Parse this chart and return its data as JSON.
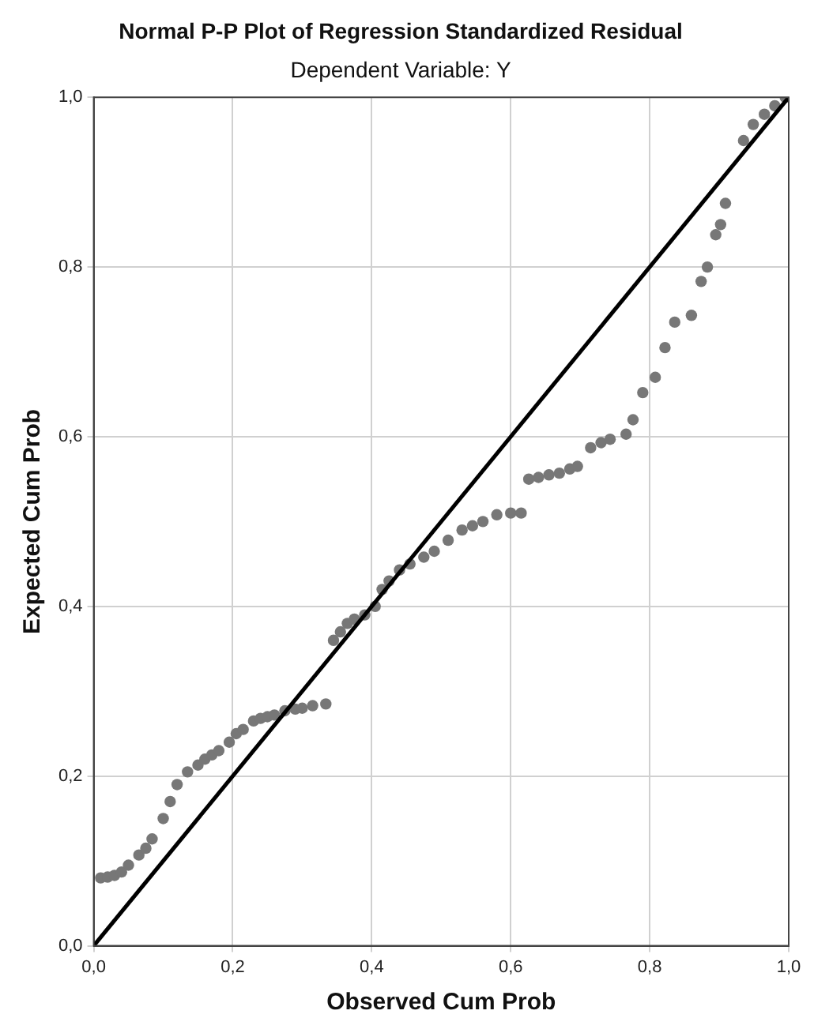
{
  "chart_data": {
    "type": "scatter",
    "title": "Normal P-P Plot of Regression Standardized Residual",
    "subtitle": "Dependent Variable: Y",
    "xlabel": "Observed Cum Prob",
    "ylabel": "Expected Cum Prob",
    "xlim": [
      0,
      1
    ],
    "ylim": [
      0,
      1
    ],
    "xticks": [
      {
        "value": 0,
        "label": "0,0"
      },
      {
        "value": 0.2,
        "label": "0,2"
      },
      {
        "value": 0.4,
        "label": "0,4"
      },
      {
        "value": 0.6,
        "label": "0,6"
      },
      {
        "value": 0.8,
        "label": "0,8"
      },
      {
        "value": 1,
        "label": "1,0"
      }
    ],
    "yticks": [
      {
        "value": 0,
        "label": "0,0"
      },
      {
        "value": 0.2,
        "label": "0,2"
      },
      {
        "value": 0.4,
        "label": "0,4"
      },
      {
        "value": 0.6,
        "label": "0,6"
      },
      {
        "value": 0.8,
        "label": "0,8"
      },
      {
        "value": 1,
        "label": "1,0"
      }
    ],
    "grid": true,
    "legend": false,
    "marker": "circle",
    "series": [
      {
        "color": "#777777",
        "x": [
          0.01,
          0.02,
          0.03,
          0.04,
          0.05,
          0.065,
          0.075,
          0.084,
          0.1,
          0.11,
          0.12,
          0.135,
          0.15,
          0.16,
          0.17,
          0.18,
          0.195,
          0.205,
          0.215,
          0.23,
          0.24,
          0.25,
          0.26,
          0.275,
          0.29,
          0.3,
          0.315,
          0.334,
          0.345,
          0.355,
          0.365,
          0.375,
          0.39,
          0.405,
          0.415,
          0.425,
          0.44,
          0.455,
          0.475,
          0.49,
          0.51,
          0.53,
          0.545,
          0.56,
          0.58,
          0.6,
          0.615,
          0.626,
          0.64,
          0.655,
          0.67,
          0.685,
          0.696,
          0.715,
          0.73,
          0.743,
          0.766,
          0.776,
          0.79,
          0.808,
          0.822,
          0.836,
          0.86,
          0.874,
          0.883,
          0.895,
          0.902,
          0.909,
          0.935,
          0.949,
          0.965,
          0.98,
          0.995
        ],
        "values": [
          0.08,
          0.081,
          0.083,
          0.087,
          0.095,
          0.107,
          0.115,
          0.126,
          0.15,
          0.17,
          0.19,
          0.205,
          0.213,
          0.22,
          0.225,
          0.23,
          0.24,
          0.25,
          0.255,
          0.265,
          0.268,
          0.27,
          0.272,
          0.277,
          0.279,
          0.28,
          0.283,
          0.285,
          0.36,
          0.37,
          0.38,
          0.385,
          0.39,
          0.4,
          0.42,
          0.43,
          0.443,
          0.45,
          0.458,
          0.465,
          0.478,
          0.49,
          0.495,
          0.5,
          0.508,
          0.51,
          0.51,
          0.55,
          0.552,
          0.555,
          0.557,
          0.562,
          0.565,
          0.587,
          0.593,
          0.597,
          0.603,
          0.62,
          0.652,
          0.67,
          0.705,
          0.735,
          0.743,
          0.783,
          0.8,
          0.838,
          0.85,
          0.875,
          0.949,
          0.968,
          0.98,
          0.99,
          1.0
        ]
      },
      {
        "type": "line",
        "color": "#000000",
        "x": [
          0,
          1
        ],
        "values": [
          0,
          1
        ],
        "marker": "none",
        "line_style": "solid"
      }
    ]
  }
}
